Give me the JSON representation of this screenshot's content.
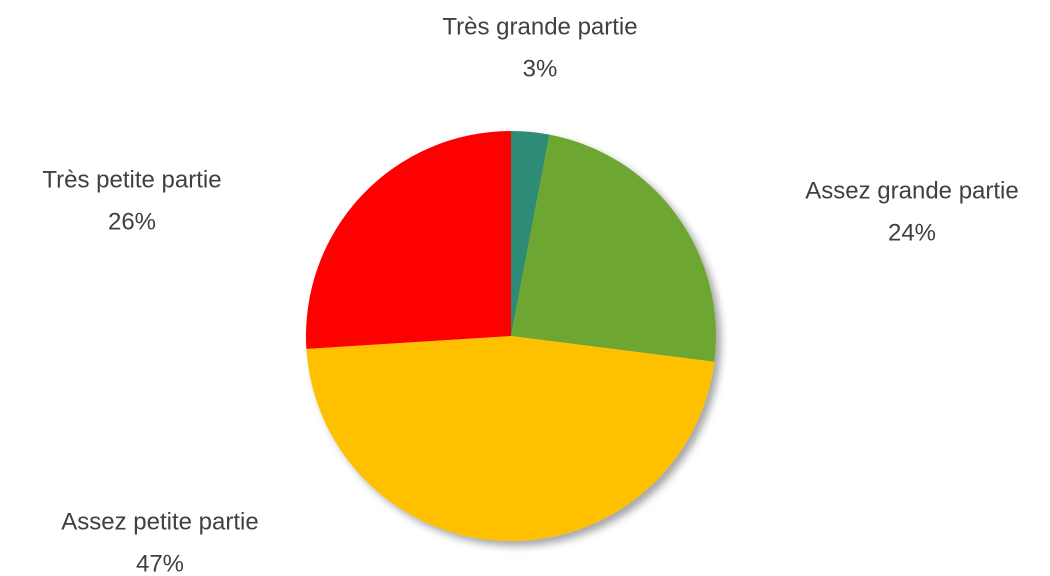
{
  "chart_data": {
    "type": "pie",
    "categories": [
      "Très grande partie",
      "Assez grande partie",
      "Assez petite partie",
      "Très petite partie"
    ],
    "values": [
      3,
      24,
      47,
      26
    ],
    "value_labels": [
      "3%",
      "24%",
      "47%",
      "26%"
    ],
    "colors": [
      "#2e8b74",
      "#6ea632",
      "#ffc000",
      "#ff0000"
    ]
  }
}
